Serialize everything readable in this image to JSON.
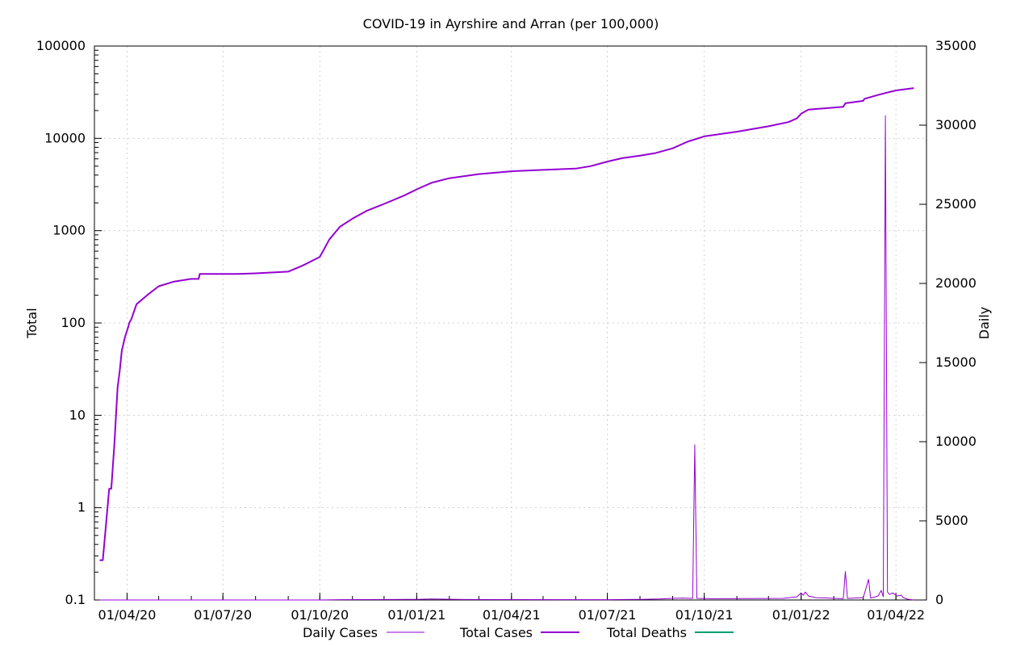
{
  "chart_data": {
    "type": "line",
    "title": "COVID-19 in Ayrshire and Arran (per 100,000)",
    "y_left_label": "Total",
    "y_right_label": "Daily",
    "y_left_scale": "log",
    "y_left_range": [
      0.1,
      100000
    ],
    "y_left_ticks": [
      "0.1",
      "1",
      "10",
      "100",
      "1000",
      "10000",
      "100000"
    ],
    "y_right_range": [
      0,
      35000
    ],
    "y_right_ticks": [
      "0",
      "5000",
      "10000",
      "15000",
      "20000",
      "25000",
      "30000",
      "35000"
    ],
    "x_range": [
      "2020-03-01",
      "2022-04-30"
    ],
    "x_ticks": [
      {
        "date": "2020-04-01",
        "label": "01/04/20"
      },
      {
        "date": "2020-07-01",
        "label": "01/07/20"
      },
      {
        "date": "2020-10-01",
        "label": "01/10/20"
      },
      {
        "date": "2021-01-01",
        "label": "01/01/21"
      },
      {
        "date": "2021-04-01",
        "label": "01/04/21"
      },
      {
        "date": "2021-07-01",
        "label": "01/07/21"
      },
      {
        "date": "2021-10-01",
        "label": "01/10/21"
      },
      {
        "date": "2022-01-01",
        "label": "01/01/22"
      },
      {
        "date": "2022-04-01",
        "label": "01/04/22"
      }
    ],
    "grid": true,
    "legend_position": "bottom",
    "series": [
      {
        "name": "Daily Cases",
        "axis": "right",
        "color": "#9400d3",
        "line_width": 1,
        "points": [
          [
            "2020-03-06",
            0
          ],
          [
            "2020-10-01",
            0
          ],
          [
            "2020-10-20",
            20
          ],
          [
            "2021-01-01",
            40
          ],
          [
            "2021-01-15",
            60
          ],
          [
            "2021-02-15",
            30
          ],
          [
            "2021-07-01",
            20
          ],
          [
            "2021-08-01",
            40
          ],
          [
            "2021-08-20",
            60
          ],
          [
            "2021-09-01",
            100
          ],
          [
            "2021-09-10",
            120
          ],
          [
            "2021-09-20",
            100
          ],
          [
            "2021-09-22",
            9800
          ],
          [
            "2021-09-24",
            100
          ],
          [
            "2021-10-10",
            80
          ],
          [
            "2021-12-15",
            100
          ],
          [
            "2021-12-28",
            200
          ],
          [
            "2022-01-01",
            450
          ],
          [
            "2022-01-03",
            300
          ],
          [
            "2022-01-05",
            500
          ],
          [
            "2022-01-08",
            250
          ],
          [
            "2022-01-15",
            150
          ],
          [
            "2022-02-10",
            80
          ],
          [
            "2022-02-12",
            1800
          ],
          [
            "2022-02-14",
            100
          ],
          [
            "2022-03-01",
            150
          ],
          [
            "2022-03-06",
            1300
          ],
          [
            "2022-03-08",
            120
          ],
          [
            "2022-03-15",
            250
          ],
          [
            "2022-03-18",
            600
          ],
          [
            "2022-03-20",
            200
          ],
          [
            "2022-03-22",
            30600
          ],
          [
            "2022-03-24",
            500
          ],
          [
            "2022-03-26",
            350
          ],
          [
            "2022-03-29",
            450
          ],
          [
            "2022-04-02",
            250
          ],
          [
            "2022-04-06",
            300
          ],
          [
            "2022-04-08",
            150
          ],
          [
            "2022-04-12",
            50
          ],
          [
            "2022-04-18",
            0
          ]
        ]
      },
      {
        "name": "Total Cases",
        "axis": "left",
        "color": "#9400d3",
        "line_width": 2,
        "points": [
          [
            "2020-03-06",
            0.27
          ],
          [
            "2020-03-09",
            0.27
          ],
          [
            "2020-03-15",
            1.6
          ],
          [
            "2020-03-17",
            1.6
          ],
          [
            "2020-03-20",
            5
          ],
          [
            "2020-03-23",
            20
          ],
          [
            "2020-03-25",
            30
          ],
          [
            "2020-03-27",
            50
          ],
          [
            "2020-03-30",
            70
          ],
          [
            "2020-04-02",
            90
          ],
          [
            "2020-04-03",
            100
          ],
          [
            "2020-04-05",
            110
          ],
          [
            "2020-04-10",
            160
          ],
          [
            "2020-04-20",
            200
          ],
          [
            "2020-05-01",
            250
          ],
          [
            "2020-05-15",
            280
          ],
          [
            "2020-06-01",
            300
          ],
          [
            "2020-06-08",
            300
          ],
          [
            "2020-06-09",
            340
          ],
          [
            "2020-07-15",
            340
          ],
          [
            "2020-08-01",
            345
          ],
          [
            "2020-09-01",
            360
          ],
          [
            "2020-09-15",
            420
          ],
          [
            "2020-10-01",
            520
          ],
          [
            "2020-10-10",
            800
          ],
          [
            "2020-10-20",
            1100
          ],
          [
            "2020-11-01",
            1350
          ],
          [
            "2020-11-15",
            1650
          ],
          [
            "2020-12-01",
            1950
          ],
          [
            "2020-12-20",
            2400
          ],
          [
            "2021-01-01",
            2800
          ],
          [
            "2021-01-15",
            3300
          ],
          [
            "2021-02-01",
            3700
          ],
          [
            "2021-03-01",
            4100
          ],
          [
            "2021-04-01",
            4400
          ],
          [
            "2021-05-01",
            4550
          ],
          [
            "2021-06-01",
            4700
          ],
          [
            "2021-06-15",
            5000
          ],
          [
            "2021-07-01",
            5600
          ],
          [
            "2021-07-15",
            6100
          ],
          [
            "2021-08-01",
            6500
          ],
          [
            "2021-08-15",
            6900
          ],
          [
            "2021-09-01",
            7800
          ],
          [
            "2021-09-15",
            9200
          ],
          [
            "2021-10-01",
            10500
          ],
          [
            "2021-11-01",
            11800
          ],
          [
            "2021-12-01",
            13500
          ],
          [
            "2021-12-20",
            15000
          ],
          [
            "2021-12-28",
            16500
          ],
          [
            "2022-01-01",
            18500
          ],
          [
            "2022-01-08",
            20500
          ],
          [
            "2022-02-01",
            21500
          ],
          [
            "2022-02-10",
            22000
          ],
          [
            "2022-02-12",
            24000
          ],
          [
            "2022-03-01",
            25500
          ],
          [
            "2022-03-02",
            26800
          ],
          [
            "2022-03-15",
            29500
          ],
          [
            "2022-03-22",
            31000
          ],
          [
            "2022-04-01",
            33000
          ],
          [
            "2022-04-18",
            35000
          ]
        ]
      },
      {
        "name": "Total Deaths",
        "axis": "left",
        "color": "#009e73",
        "line_width": 2,
        "points": []
      }
    ]
  }
}
